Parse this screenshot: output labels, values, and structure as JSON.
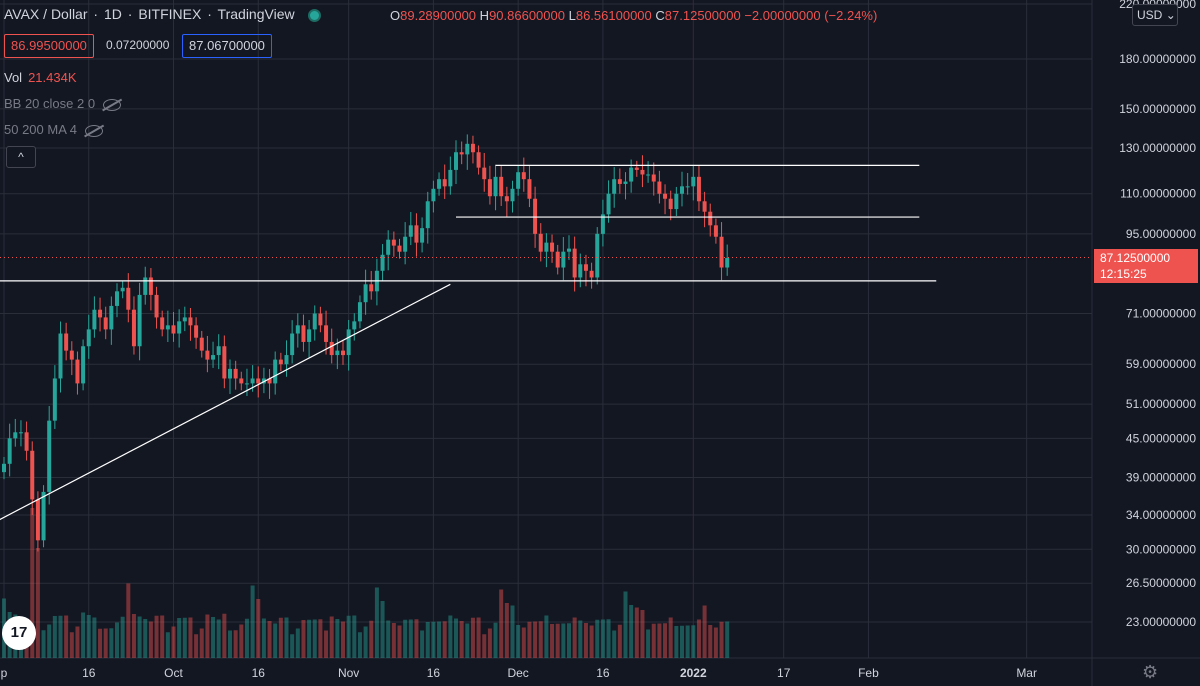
{
  "header": {
    "symbol": "AVAX / Dollar",
    "interval": "1D",
    "exchange": "BITFINEX",
    "platform": "TradingView",
    "sep": "·",
    "ohlc": {
      "o_key": "O",
      "o": "89.28900000",
      "h_key": "H",
      "h": "90.86600000",
      "l_key": "L",
      "l": "86.56100000",
      "c_key": "C",
      "c": "87.12500000",
      "change": "−2.00000000 (−2.24%)"
    }
  },
  "trade": {
    "bid": "86.99500000",
    "spread": "0.07200000",
    "ask": "87.06700000"
  },
  "indicators": {
    "vol_label": "Vol",
    "vol_value": "21.434K",
    "bb": "BB 20 close 2 0",
    "ma": "50 200 MA 4",
    "collapse": "^"
  },
  "currency": "USD",
  "last_price": {
    "price": "87.12500000",
    "countdown": "12:15:25"
  },
  "colors": {
    "up": "#26a69a",
    "down": "#ef5350",
    "bg": "#131722",
    "grid": "#2a2e39",
    "line": "#ffffff"
  },
  "icons": [
    "tradingview-logo-icon",
    "settings-gear-icon",
    "eye-crossed-icon"
  ],
  "chart_data": {
    "type": "candlestick",
    "scale": "log",
    "y_tick_labels": [
      "220.00000000",
      "180.00000000",
      "150.00000000",
      "130.00000000",
      "110.00000000",
      "95.00000000",
      "87.12500000",
      "71.00000000",
      "59.00000000",
      "51.00000000",
      "45.00000000",
      "39.00000000",
      "34.00000000",
      "30.00000000",
      "26.50000000",
      "23.00000000"
    ],
    "y_ticks": [
      220,
      180,
      150,
      130,
      110,
      95,
      71,
      59,
      51,
      45,
      39,
      34,
      30,
      26.5,
      23
    ],
    "x_tick_labels": [
      {
        "label": "p",
        "t": 0
      },
      {
        "label": "16",
        "t": 15
      },
      {
        "label": "Oct",
        "t": 30
      },
      {
        "label": "16",
        "t": 45
      },
      {
        "label": "Nov",
        "t": 61
      },
      {
        "label": "16",
        "t": 76
      },
      {
        "label": "Dec",
        "t": 91
      },
      {
        "label": "16",
        "t": 106
      },
      {
        "label": "2022",
        "t": 122
      },
      {
        "label": "17",
        "t": 138
      },
      {
        "label": "Feb",
        "t": 153
      },
      {
        "label": "Mar",
        "t": 181
      }
    ],
    "closes": [
      41,
      45,
      46,
      46,
      43,
      36,
      31,
      37,
      48,
      56,
      66,
      62,
      60,
      55,
      63,
      67,
      72,
      70,
      67,
      73,
      77,
      78,
      72,
      63,
      76,
      81,
      76,
      70,
      67,
      68,
      66,
      69,
      70,
      68,
      65,
      62,
      60,
      61,
      63,
      56,
      58,
      56,
      55,
      55,
      56,
      55,
      56,
      55,
      60,
      59,
      61,
      66,
      68,
      64,
      67,
      71,
      68,
      64,
      61,
      62,
      61,
      67,
      69,
      74,
      79,
      77,
      83,
      88,
      93,
      91,
      89,
      94,
      98,
      92,
      97,
      107,
      112,
      116,
      113,
      120,
      128,
      127,
      132,
      128,
      121,
      116,
      109,
      117,
      109,
      107,
      112,
      119,
      116,
      108,
      95,
      89,
      92,
      89,
      84,
      89,
      90,
      81,
      85,
      83,
      81,
      95,
      102,
      110,
      116,
      114,
      115,
      121,
      120,
      118,
      118,
      115,
      110,
      108,
      104,
      110,
      113,
      113,
      117,
      107,
      103,
      98,
      94,
      84,
      87
    ],
    "volume_peaks": [
      0.9,
      0.6,
      0.5,
      0.4,
      0.3,
      0.35,
      0.3,
      0.25,
      0.3,
      0.4,
      0.35,
      0.3,
      0.25,
      0.3,
      0.5,
      0.4,
      0.3,
      0.35,
      0.3,
      0.25,
      0.3,
      0.35
    ],
    "trendlines": [
      {
        "from": {
          "t": -2,
          "price": 33
        },
        "to": {
          "t": 79,
          "price": 79
        },
        "kind": "rising-support"
      },
      {
        "from": {
          "t": -2,
          "price": 80
        },
        "to": {
          "t": 165,
          "price": 80
        },
        "kind": "horizontal"
      },
      {
        "from": {
          "t": 80,
          "price": 101
        },
        "to": {
          "t": 162,
          "price": 101
        },
        "kind": "horizontal"
      },
      {
        "from": {
          "t": 87,
          "price": 122
        },
        "to": {
          "t": 162,
          "price": 122
        },
        "kind": "horizontal"
      }
    ]
  }
}
